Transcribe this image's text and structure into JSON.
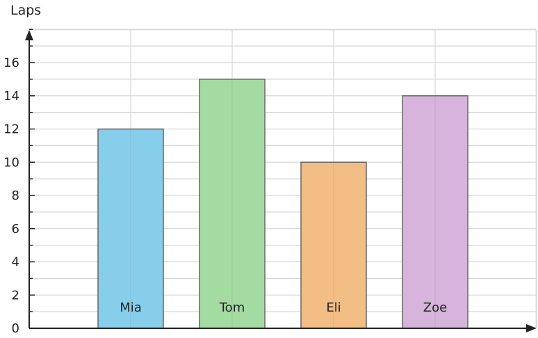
{
  "chart_data": {
    "type": "bar",
    "ylabel": "Laps",
    "categories": [
      "Mia",
      "Tom",
      "Eli",
      "Zoe"
    ],
    "values": [
      12,
      15,
      10,
      14
    ],
    "colors": [
      "#87CEEB",
      "#A3DBA3",
      "#F2BE86",
      "#D7B4DC"
    ],
    "ylim": [
      0,
      18
    ],
    "yticks": [
      0,
      2,
      4,
      6,
      8,
      10,
      12,
      14,
      16
    ],
    "grid": true
  }
}
